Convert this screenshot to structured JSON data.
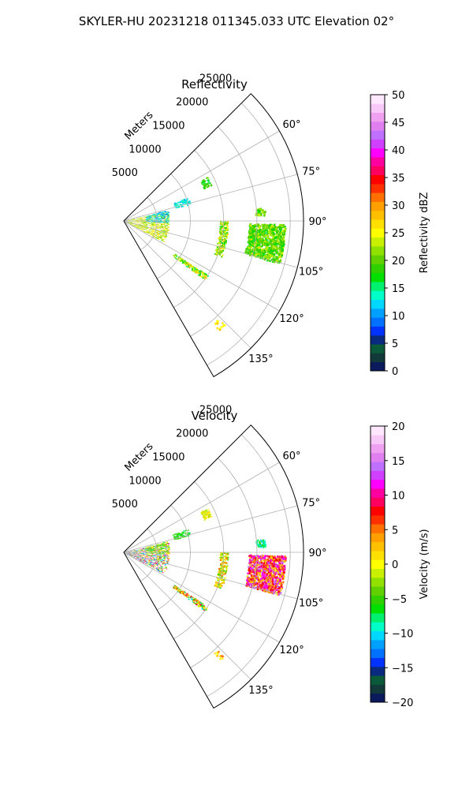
{
  "figure": {
    "title": "SKYLER-HU  20231218  011345.033 UTC Elevation 02°"
  },
  "chart_data": [
    {
      "type": "heatmap",
      "projection": "polar-sector",
      "title": "Reflectivity",
      "radial_label": "Meters",
      "radial_ticks": [
        5000,
        10000,
        15000,
        20000,
        25000
      ],
      "radial_tick_labels": [
        "5000",
        "10000",
        "15000",
        "20000",
        "25000"
      ],
      "radial_range": [
        0,
        27000
      ],
      "azimuth_range_deg": [
        45,
        150
      ],
      "azimuth_ticks_deg": [
        60,
        75,
        90,
        105,
        120,
        135
      ],
      "azimuth_tick_labels": [
        "60°",
        "75°",
        "90°",
        "105°",
        "120°",
        "135°"
      ],
      "grid": true,
      "colorbar": {
        "label": "Reflectivity dBZ",
        "min": 0,
        "max": 50,
        "ticks": [
          0,
          5,
          10,
          15,
          20,
          25,
          30,
          35,
          40,
          45,
          50
        ],
        "tick_labels": [
          "0",
          "5",
          "10",
          "15",
          "20",
          "25",
          "30",
          "35",
          "40",
          "45",
          "50"
        ]
      },
      "colors": [
        "#0a1a5c",
        "#123a3a",
        "#0b5a3a",
        "#0a2a80",
        "#0033ff",
        "#0070ff",
        "#00a0ff",
        "#00d8ff",
        "#00ffc8",
        "#00f070",
        "#00e000",
        "#30d000",
        "#60d000",
        "#90e000",
        "#c8f000",
        "#ffff00",
        "#ffe000",
        "#ffc000",
        "#ffa000",
        "#ff7000",
        "#ff3000",
        "#ff0000",
        "#ff0060",
        "#ff00a0",
        "#ff00ff",
        "#d040ff",
        "#c070ff",
        "#e080f0",
        "#f0a0f0",
        "#f8c8f8",
        "#ffe8ff"
      ]
    },
    {
      "type": "heatmap",
      "projection": "polar-sector",
      "title": "Velocity",
      "radial_label": "Meters",
      "radial_ticks": [
        5000,
        10000,
        15000,
        20000,
        25000
      ],
      "radial_tick_labels": [
        "5000",
        "10000",
        "15000",
        "20000",
        "25000"
      ],
      "radial_range": [
        0,
        27000
      ],
      "azimuth_range_deg": [
        45,
        150
      ],
      "azimuth_ticks_deg": [
        60,
        75,
        90,
        105,
        120,
        135
      ],
      "azimuth_tick_labels": [
        "60°",
        "75°",
        "90°",
        "105°",
        "120°",
        "135°"
      ],
      "grid": true,
      "colorbar": {
        "label": "Velocity (m/s)",
        "min": -20,
        "max": 20,
        "ticks": [
          -20,
          -15,
          -10,
          -5,
          0,
          5,
          10,
          15,
          20
        ],
        "tick_labels": [
          "−20",
          "−15",
          "−10",
          "−5",
          "0",
          "5",
          "10",
          "15",
          "20"
        ]
      },
      "colors": [
        "#0a1a5c",
        "#123a3a",
        "#0b5a3a",
        "#0a2a80",
        "#0033ff",
        "#0070ff",
        "#00a0ff",
        "#00d8ff",
        "#00ffc8",
        "#00f070",
        "#00e000",
        "#30d000",
        "#60d000",
        "#90e000",
        "#c8f000",
        "#ffff00",
        "#ffe000",
        "#ffc000",
        "#ffa000",
        "#ff7000",
        "#ff3000",
        "#ff0000",
        "#ff0060",
        "#ff00a0",
        "#ff00ff",
        "#d040ff",
        "#c070ff",
        "#e080f0",
        "#f0a0f0",
        "#f8c8f8",
        "#ffe8ff"
      ]
    }
  ]
}
